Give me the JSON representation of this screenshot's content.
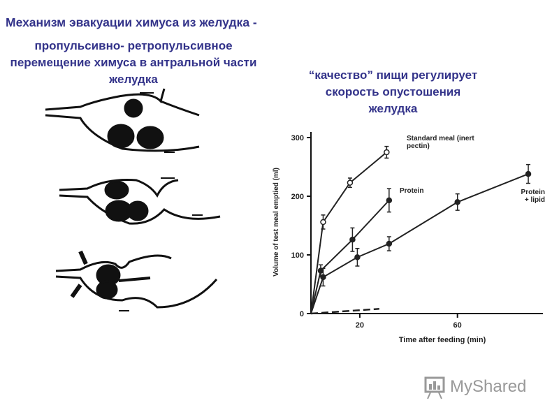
{
  "slide": {
    "title": "Механизм эвакуации химуса из желудка -",
    "subtitle": "пропульсивно- ретропульсивное перемещение химуса в антральной части желудка",
    "caption": "“качество” пищи регулирует скорость опустошения желудка",
    "logo": "MyShared"
  },
  "chart_data": {
    "type": "line",
    "x_label": "Time after feeding (min)",
    "y_label": "Volume of test meal emptied (ml)",
    "xlim": [
      0,
      95
    ],
    "ylim": [
      0,
      300
    ],
    "xticks": [
      20,
      60
    ],
    "yticks": [
      0,
      100,
      200,
      300
    ],
    "series": [
      {
        "name": "Standard meal (inert pectin)",
        "color": "#222222",
        "marker": "open",
        "x": [
          0,
          5,
          16,
          31
        ],
        "values": [
          0,
          156,
          223,
          275
        ],
        "errors": [
          null,
          12,
          8,
          10
        ]
      },
      {
        "name": "Protein",
        "color": "#222222",
        "marker": "filled",
        "x": [
          0,
          4,
          17,
          32
        ],
        "values": [
          0,
          73,
          126,
          193
        ],
        "errors": [
          null,
          10,
          20,
          20
        ]
      },
      {
        "name": "Protein + lipid",
        "color": "#222222",
        "marker": "filled",
        "x": [
          0,
          5,
          19,
          32,
          60,
          89
        ],
        "values": [
          0,
          62,
          96,
          119,
          190,
          238
        ],
        "errors": [
          null,
          15,
          15,
          12,
          14,
          16
        ]
      },
      {
        "color": "#222222",
        "dash": true,
        "x": [
          0,
          28
        ],
        "values": [
          0,
          8
        ]
      }
    ]
  }
}
